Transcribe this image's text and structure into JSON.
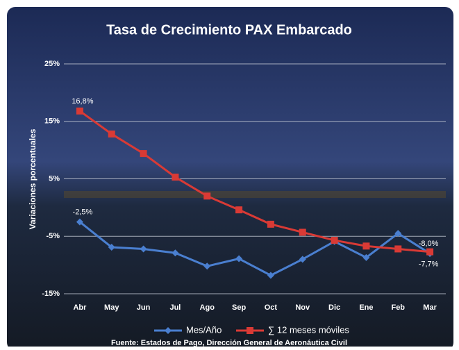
{
  "chart_data": {
    "type": "line",
    "title": "Tasa de Crecimiento PAX Embarcado",
    "y_label": "Variaciones  porcentuales",
    "source": "Fuente: Estados de Pago, Dirección General de Aeronáutica Civil",
    "categories": [
      "Abr",
      "May",
      "Jun",
      "Jul",
      "Ago",
      "Sep",
      "Oct",
      "Nov",
      "Dic",
      "Ene",
      "Feb",
      "Mar"
    ],
    "series": [
      {
        "name": "Mes/Año",
        "color": "#4a7fd0",
        "marker": "diamond",
        "values": [
          -2.5,
          -6.9,
          -7.2,
          -7.9,
          -10.2,
          -8.9,
          -11.8,
          -9.0,
          -5.9,
          -8.7,
          -4.5,
          -8.0
        ],
        "value_labels": [
          "-2,5%",
          null,
          null,
          null,
          null,
          null,
          null,
          null,
          null,
          null,
          null,
          "-8,0%"
        ]
      },
      {
        "name": "∑ 12 meses móviles",
        "color": "#d93a35",
        "marker": "square",
        "values": [
          16.8,
          12.8,
          9.4,
          5.3,
          2.0,
          -0.4,
          -2.9,
          -4.3,
          -5.7,
          -6.7,
          -7.2,
          -7.7
        ],
        "value_labels": [
          "16,8%",
          null,
          null,
          null,
          null,
          null,
          null,
          null,
          null,
          null,
          null,
          "-7,7%"
        ]
      }
    ],
    "ylim": [
      -15,
      25
    ],
    "yticks": [
      {
        "value": -15,
        "label": "-15%"
      },
      {
        "value": -5,
        "label": "-5%"
      },
      {
        "value": 5,
        "label": "5%"
      },
      {
        "value": 15,
        "label": "15%"
      },
      {
        "value": 25,
        "label": "25%"
      }
    ],
    "grid": true
  }
}
